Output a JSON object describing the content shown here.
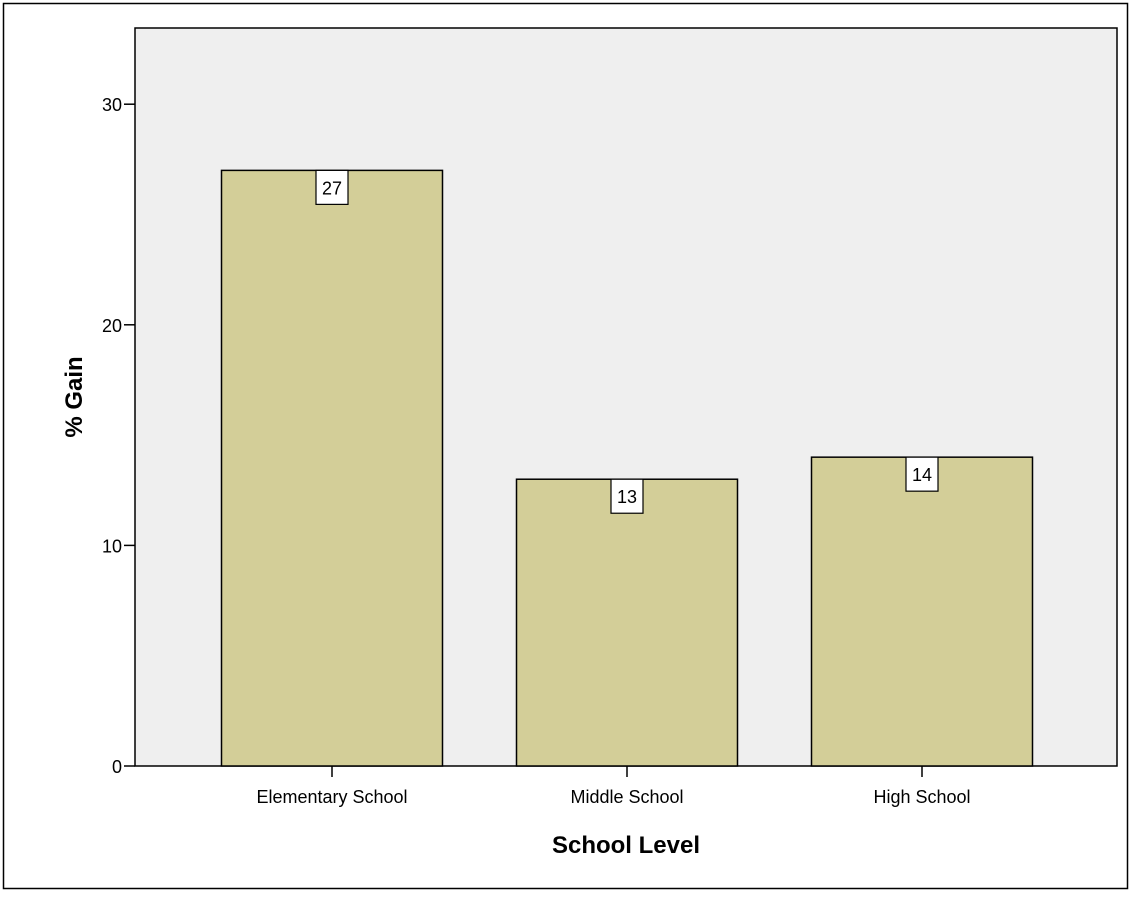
{
  "chart_data": {
    "type": "bar",
    "title": "",
    "xlabel": "School Level",
    "ylabel": "% Gain",
    "categories": [
      "Elementary School",
      "Middle School",
      "High School"
    ],
    "values": [
      27,
      13,
      14
    ],
    "data_labels": [
      "27",
      "13",
      "14"
    ],
    "yticks": [
      0,
      10,
      20,
      30
    ],
    "ytick_labels": [
      "0",
      "10",
      "20",
      "30"
    ],
    "ylim": [
      0,
      33
    ],
    "grid": false,
    "legend": "none",
    "colors": {
      "bar_fill": "#d3ce98",
      "bar_stroke": "#000000",
      "plot_background": "#efefef",
      "label_box_fill": "#ffffff"
    }
  }
}
